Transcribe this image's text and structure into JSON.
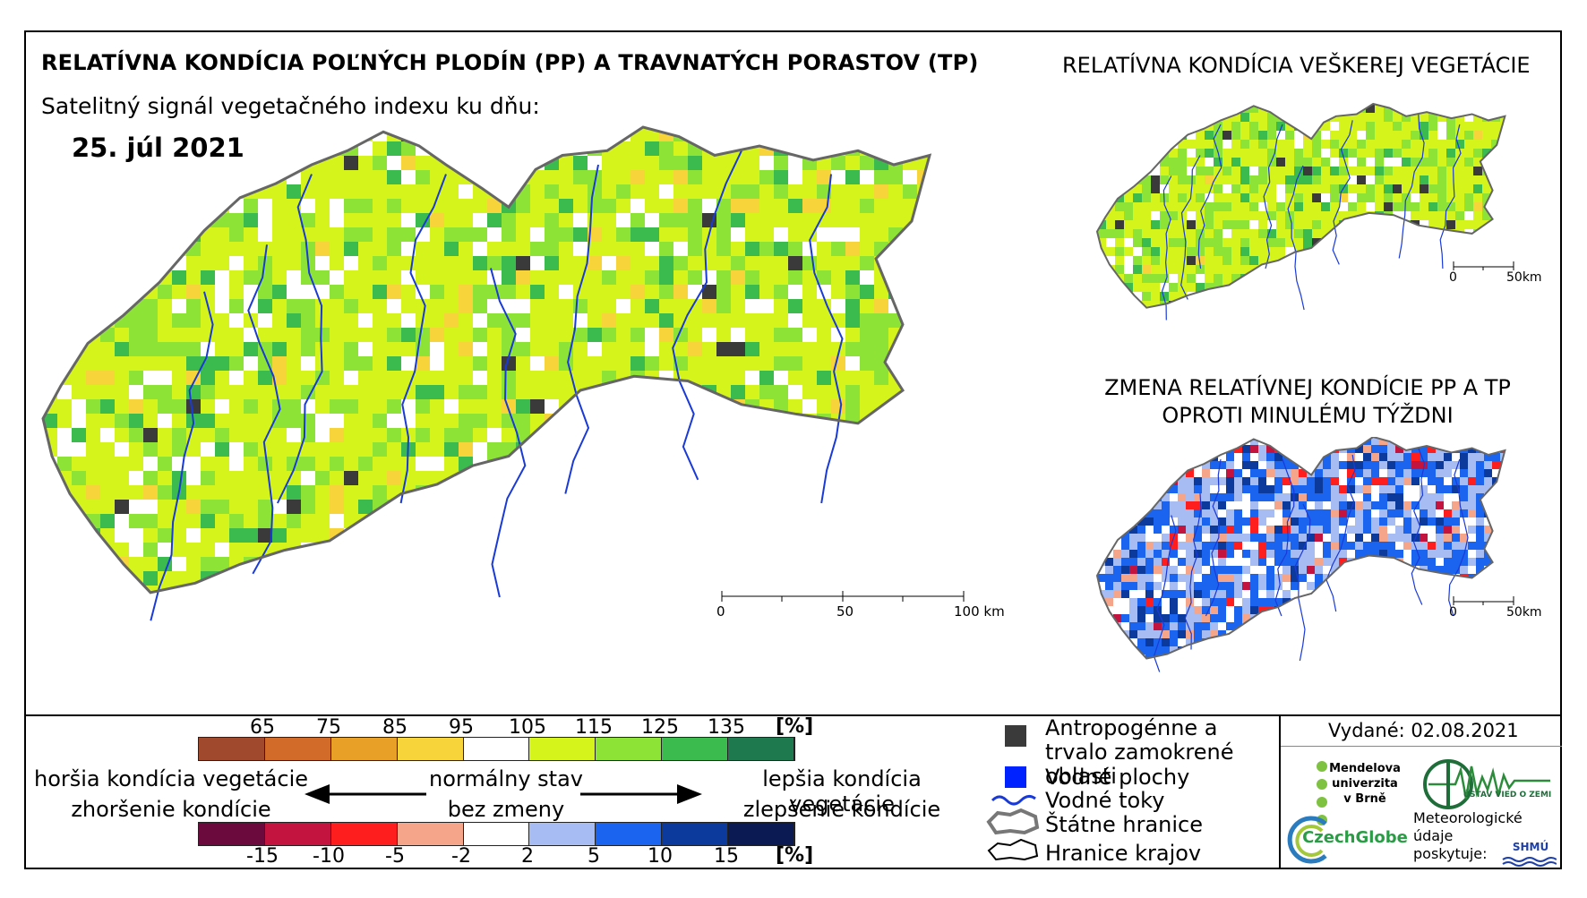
{
  "main_map": {
    "title": "RELATÍVNA KONDÍCIA POĽNÝCH PLODÍN (PP) A TRAVNATÝCH PORASTOV (TP)",
    "subtitle": "Satelitný signál vegetačného indexu ku dňu:",
    "date": "25. júl 2021",
    "scale_labels": [
      "0",
      "50",
      "100 km"
    ]
  },
  "vegetation_map": {
    "title": "RELATÍVNA KONDÍCIA VEŠKEREJ VEGETÁCIE",
    "scale_labels": [
      "0",
      "50km"
    ]
  },
  "change_map": {
    "title": "ZMENA RELATÍVNEJ KONDÍCIE PP A TP OPROTI MINULÉMU TÝŽDNI",
    "scale_labels": [
      "0",
      "50km"
    ]
  },
  "legend": {
    "condition_ticks": [
      "65",
      "75",
      "85",
      "95",
      "105",
      "115",
      "125",
      "135"
    ],
    "condition_unit": "[%]",
    "condition_colors": [
      "#a0492d",
      "#d26b29",
      "#e8a026",
      "#f7d43a",
      "#ffffff",
      "#d4f41c",
      "#8ee436",
      "#3bba4e",
      "#1e7a4e"
    ],
    "change_ticks": [
      "-15",
      "-10",
      "-5",
      "-2",
      "2",
      "5",
      "10",
      "15"
    ],
    "change_unit": "[%]",
    "change_colors": [
      "#6b0a3d",
      "#c3133f",
      "#ff1e1e",
      "#f5a58a",
      "#ffffff",
      "#a7bcf3",
      "#1a64f0",
      "#0c3a9c",
      "#0c1a54"
    ],
    "worse_condition": "horšia kondícia vegetácie",
    "worse_change": "zhoršenie kondície",
    "normal_condition": "normálny stav",
    "normal_change": "bez zmeny",
    "better_condition": "lepšia kondícia vegetácie",
    "better_change": "zlepšenie kondície"
  },
  "key": {
    "items": [
      {
        "label": "Antropogénne a trvalo zamokrené oblasti",
        "icon": "dark-square-icon",
        "color": "#3a3a3a"
      },
      {
        "label": "Vodné plochy",
        "icon": "blue-square-icon",
        "color": "#0022ff"
      },
      {
        "label": "Vodné toky",
        "icon": "river-line-icon",
        "color": "#1a3ad8"
      },
      {
        "label": "Štátne hranice",
        "icon": "state-border-icon",
        "color": "#555555"
      },
      {
        "label": "Hranice krajov",
        "icon": "region-border-icon",
        "color": "#000000"
      }
    ]
  },
  "issued": "Vydané: 02.08.2021",
  "logos": {
    "mendel": "Mendelova univerzita v Brně",
    "ustav": "ÚSTAV VIED O ZEMI",
    "czechglobe": "CzechGlobe",
    "meteo": "Meteorologické údaje poskytuje:",
    "shmu": "SHMÚ"
  }
}
